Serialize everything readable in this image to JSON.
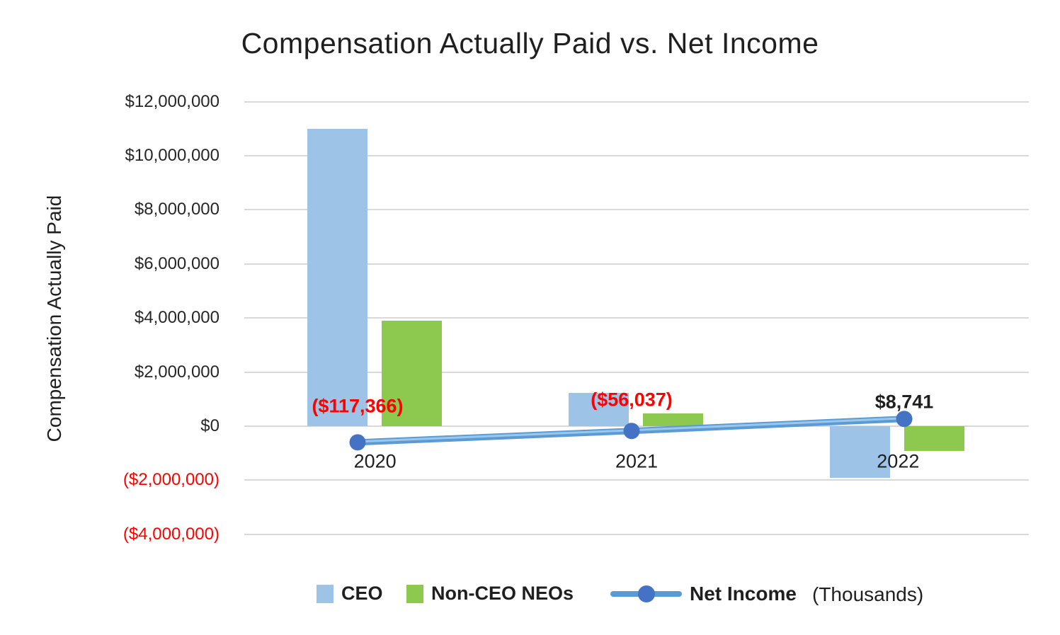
{
  "title": "Compensation Actually Paid vs. Net Income",
  "chart_data": {
    "type": "combo",
    "subtype": "clustered-bars-with-line",
    "categories": [
      "2020",
      "2021",
      "2022"
    ],
    "series": [
      {
        "name": "CEO",
        "type": "bar",
        "color": "#9dc3e6",
        "values": [
          11000000,
          1230000,
          -1900000
        ]
      },
      {
        "name": "Non-CEO NEOs",
        "type": "bar",
        "color": "#8dc84f",
        "values": [
          3900000,
          470000,
          -920000
        ]
      },
      {
        "name": "Net Income",
        "type": "line",
        "units": "Thousands",
        "color": "#5b9bd5",
        "highlight_color": "#9cc7ec",
        "marker_color": "#4472c4",
        "values": [
          -117366,
          -56037,
          8741
        ],
        "data_labels": [
          {
            "text": "($117,366)",
            "color": "#ff0000"
          },
          {
            "text": "($56,037)",
            "color": "#ff0000"
          },
          {
            "text": "$8,741",
            "color": "#1f1f1f"
          }
        ]
      }
    ],
    "y_axis": {
      "title": "Compensation Actually Paid",
      "min": -4000000,
      "max": 12000000,
      "tick_step": 2000000,
      "tick_labels": [
        {
          "value": 12000000,
          "text": "$12,000,000",
          "color": "#262626"
        },
        {
          "value": 10000000,
          "text": "$10,000,000",
          "color": "#262626"
        },
        {
          "value": 8000000,
          "text": "$8,000,000",
          "color": "#262626"
        },
        {
          "value": 6000000,
          "text": "$6,000,000",
          "color": "#262626"
        },
        {
          "value": 4000000,
          "text": "$4,000,000",
          "color": "#262626"
        },
        {
          "value": 2000000,
          "text": "$2,000,000",
          "color": "#262626"
        },
        {
          "value": 0,
          "text": "$0",
          "color": "#262626"
        },
        {
          "value": -2000000,
          "text": "($2,000,000)",
          "color": "#ff0000"
        },
        {
          "value": -4000000,
          "text": "($4,000,000)",
          "color": "#ff0000"
        }
      ]
    },
    "x_axis": {
      "labels": [
        "2020",
        "2021",
        "2022"
      ]
    },
    "legend": {
      "position": "bottom",
      "items": [
        {
          "label": "CEO",
          "swatch": "#9dc3e6",
          "marker": "square"
        },
        {
          "label": "Non-CEO NEOs",
          "swatch": "#8dc84f",
          "marker": "square"
        },
        {
          "label": "Net Income",
          "swatch": "#5b9bd5",
          "marker": "line-dot"
        }
      ],
      "annotation": "(Thousands)"
    },
    "grid": true,
    "colors": {
      "gridline": "#d9d9d9",
      "negative_text": "#ff0000",
      "text": "#1f1f1f",
      "background": "#ffffff"
    }
  }
}
